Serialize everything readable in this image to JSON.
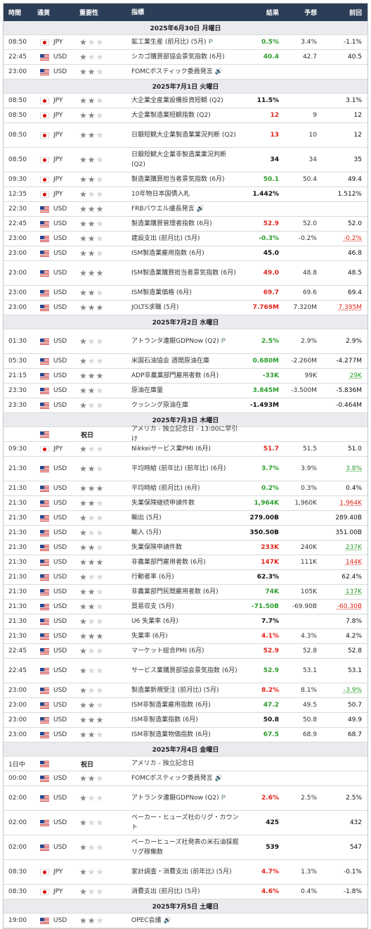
{
  "header": {
    "time": "時間",
    "currency": "通貨",
    "importance": "重要性",
    "indicator": "指標",
    "actual": "結果",
    "forecast": "予想",
    "previous": "前回"
  },
  "colors": {
    "header_bg": "#2c3e57",
    "date_bg": "#e9ebef",
    "positive": "#2a9d2a",
    "negative": "#e0251b"
  },
  "rows": [
    {
      "type": "date",
      "label": "2025年6月30日 月曜日"
    },
    {
      "time": "08:50",
      "flag": "jp",
      "cur": "JPY",
      "stars": 1,
      "name": "鉱工業生産 (前月比) (5月)",
      "pre": true,
      "act": "0.5%",
      "ac": "grn",
      "fc": "3.4%",
      "prev": "-1.1%",
      "pc": "blk"
    },
    {
      "time": "22:45",
      "flag": "us",
      "cur": "USD",
      "stars": 1,
      "name": "シカゴ購買部協会景気指数 (6月)",
      "act": "40.4",
      "ac": "grn",
      "fc": "42.7",
      "prev": "40.5",
      "pc": "blk"
    },
    {
      "time": "23:00",
      "flag": "us",
      "cur": "USD",
      "stars": 2,
      "name": "FOMCボスティック委員発言",
      "spk": true,
      "act": "",
      "fc": "",
      "prev": ""
    },
    {
      "type": "date",
      "label": "2025年7月1日 火曜日"
    },
    {
      "time": "08:50",
      "flag": "jp",
      "cur": "JPY",
      "stars": 2,
      "name": "大企業全産業設備投資短観 (Q2)",
      "act": "11.5%",
      "ac": "blk",
      "fc": "",
      "prev": "3.1%",
      "pc": "blk"
    },
    {
      "time": "08:50",
      "flag": "jp",
      "cur": "JPY",
      "stars": 2,
      "name": "大企業製造業短観指数 (Q2)",
      "act": "12",
      "ac": "red",
      "fc": "9",
      "prev": "12",
      "pc": "blk"
    },
    {
      "time": "08:50",
      "flag": "jp",
      "cur": "JPY",
      "stars": 2,
      "name": "日銀短観大企業製造業業況判断 (Q2)",
      "tall": true,
      "act": "13",
      "ac": "red",
      "fc": "10",
      "prev": "12",
      "pc": "blk"
    },
    {
      "time": "08:50",
      "flag": "jp",
      "cur": "JPY",
      "stars": 2,
      "name": "日銀短観大企業非製造業業況判断 (Q2)",
      "tall": true,
      "act": "34",
      "ac": "blk",
      "fc": "34",
      "prev": "35",
      "pc": "blk"
    },
    {
      "time": "09:30",
      "flag": "jp",
      "cur": "JPY",
      "stars": 2,
      "name": "製造業購買担当者景気指数 (6月)",
      "act": "50.1",
      "ac": "grn",
      "fc": "50.4",
      "prev": "49.4",
      "pc": "blk"
    },
    {
      "time": "12:35",
      "flag": "jp",
      "cur": "JPY",
      "stars": 1,
      "name": "10年物日本国債入札",
      "act": "1.442%",
      "ac": "blk",
      "fc": "",
      "prev": "1.512%",
      "pc": "blk"
    },
    {
      "time": "22:30",
      "flag": "us",
      "cur": "USD",
      "stars": 3,
      "name": "FRBパウエル議長発言",
      "spk": true,
      "act": "",
      "fc": "",
      "prev": ""
    },
    {
      "time": "22:45",
      "flag": "us",
      "cur": "USD",
      "stars": 2,
      "name": "製造業購買管理者指数 (6月)",
      "act": "52.9",
      "ac": "red",
      "fc": "52.0",
      "prev": "52.0",
      "pc": "blk"
    },
    {
      "time": "23:00",
      "flag": "us",
      "cur": "USD",
      "stars": 2,
      "name": "建設支出 (前月比) (5月)",
      "act": "-0.3%",
      "ac": "grn",
      "fc": "-0.2%",
      "prev": "-0.2%",
      "pc": "red ul"
    },
    {
      "time": "23:00",
      "flag": "us",
      "cur": "USD",
      "stars": 2,
      "name": "ISM製造業雇用指数 (6月)",
      "act": "45.0",
      "ac": "blk",
      "fc": "",
      "prev": "46.8",
      "pc": "blk"
    },
    {
      "time": "23:00",
      "flag": "us",
      "cur": "USD",
      "stars": 3,
      "name": "ISM製造業購買担当者景気指数 (6月)",
      "tall": true,
      "act": "49.0",
      "ac": "red",
      "fc": "48.8",
      "prev": "48.5",
      "pc": "blk"
    },
    {
      "time": "23:00",
      "flag": "us",
      "cur": "USD",
      "stars": 2,
      "name": "ISM製造業価格 (6月)",
      "act": "69.7",
      "ac": "red",
      "fc": "69.6",
      "prev": "69.4",
      "pc": "blk"
    },
    {
      "time": "23:00",
      "flag": "us",
      "cur": "USD",
      "stars": 3,
      "name": "JOLTS求職 (5月)",
      "act": "7.769M",
      "ac": "red",
      "fc": "7.320M",
      "prev": "7.395M",
      "pc": "red ul"
    },
    {
      "type": "date",
      "label": "2025年7月2日 水曜日"
    },
    {
      "time": "01:30",
      "flag": "us",
      "cur": "USD",
      "stars": 1,
      "name": "アトランタ連銀GDPNow (Q2)",
      "pre2": true,
      "tall": true,
      "act": "2.5%",
      "ac": "grn",
      "fc": "2.9%",
      "prev": "2.9%",
      "pc": "blk"
    },
    {
      "time": "05:30",
      "flag": "us",
      "cur": "USD",
      "stars": 1,
      "name": "米国石油協会 週間原油在庫",
      "act": "0.680M",
      "ac": "grn",
      "fc": "-2.260M",
      "prev": "-4.277M",
      "pc": "blk"
    },
    {
      "time": "21:15",
      "flag": "us",
      "cur": "USD",
      "stars": 3,
      "name": "ADP非農業部門雇用者数 (6月)",
      "act": "-33K",
      "ac": "grn",
      "fc": "99K",
      "prev": "29K",
      "pc": "grn ul"
    },
    {
      "time": "23:30",
      "flag": "us",
      "cur": "USD",
      "stars": 2,
      "name": "原油在庫量",
      "act": "3.845M",
      "ac": "grn",
      "fc": "-3.500M",
      "prev": "-5.836M",
      "pc": "blk"
    },
    {
      "time": "23:30",
      "flag": "us",
      "cur": "USD",
      "stars": 1,
      "name": "クッシング原油在庫",
      "act": "-1.493M",
      "ac": "blk",
      "fc": "",
      "prev": "-0.464M",
      "pc": "blk"
    },
    {
      "type": "date",
      "label": "2025年7月3日 木曜日"
    },
    {
      "time": "",
      "flag": "us",
      "cur": "",
      "stars": 0,
      "holiday": "祝日",
      "name": "アメリカ - 独立記念日 - 13:00に早引け",
      "act": "",
      "fc": "",
      "prev": ""
    },
    {
      "time": "09:30",
      "flag": "jp",
      "cur": "JPY",
      "stars": 1,
      "name": "Nikkeiサービス業PMI (6月)",
      "act": "51.7",
      "ac": "red",
      "fc": "51.5",
      "prev": "51.0",
      "pc": "blk"
    },
    {
      "time": "21:30",
      "flag": "us",
      "cur": "USD",
      "stars": 2,
      "name": "平均時給 (前年比) (前年比) (6月)",
      "tall": true,
      "act": "3.7%",
      "ac": "grn",
      "fc": "3.9%",
      "prev": "3.8%",
      "pc": "grn ul"
    },
    {
      "time": "21:30",
      "flag": "us",
      "cur": "USD",
      "stars": 3,
      "name": "平均時給 (前月比) (6月)",
      "act": "0.2%",
      "ac": "grn",
      "fc": "0.3%",
      "prev": "0.4%",
      "pc": "blk"
    },
    {
      "time": "21:30",
      "flag": "us",
      "cur": "USD",
      "stars": 2,
      "name": "失業保険継続申請件数",
      "act": "1,964K",
      "ac": "grn",
      "fc": "1,960K",
      "prev": "1,964K",
      "pc": "red ul"
    },
    {
      "time": "21:30",
      "flag": "us",
      "cur": "USD",
      "stars": 1,
      "name": "輸出 (5月)",
      "act": "279.00B",
      "ac": "blk",
      "fc": "",
      "prev": "289.40B",
      "pc": "blk"
    },
    {
      "time": "21:30",
      "flag": "us",
      "cur": "USD",
      "stars": 1,
      "name": "輸入 (5月)",
      "act": "350.50B",
      "ac": "blk",
      "fc": "",
      "prev": "351.00B",
      "pc": "blk"
    },
    {
      "time": "21:30",
      "flag": "us",
      "cur": "USD",
      "stars": 2,
      "name": "失業保険申請件数",
      "act": "233K",
      "ac": "red",
      "fc": "240K",
      "prev": "237K",
      "pc": "grn ul"
    },
    {
      "time": "21:30",
      "flag": "us",
      "cur": "USD",
      "stars": 3,
      "name": "非農業部門雇用者数 (6月)",
      "act": "147K",
      "ac": "red",
      "fc": "111K",
      "prev": "144K",
      "pc": "red ul"
    },
    {
      "time": "21:30",
      "flag": "us",
      "cur": "USD",
      "stars": 1,
      "name": "行動者率 (6月)",
      "act": "62.3%",
      "ac": "blk",
      "fc": "",
      "prev": "62.4%",
      "pc": "blk"
    },
    {
      "time": "21:30",
      "flag": "us",
      "cur": "USD",
      "stars": 2,
      "name": "非農業部門民間雇用者数 (6月)",
      "act": "74K",
      "ac": "grn",
      "fc": "105K",
      "prev": "137K",
      "pc": "grn ul"
    },
    {
      "time": "21:30",
      "flag": "us",
      "cur": "USD",
      "stars": 2,
      "name": "貿易収支 (5月)",
      "act": "-71.50B",
      "ac": "grn",
      "fc": "-69.90B",
      "prev": "-60.30B",
      "pc": "red ul"
    },
    {
      "time": "21:30",
      "flag": "us",
      "cur": "USD",
      "stars": 1,
      "name": "U6 失業率 (6月)",
      "act": "7.7%",
      "ac": "blk",
      "fc": "",
      "prev": "7.8%",
      "pc": "blk"
    },
    {
      "time": "21:30",
      "flag": "us",
      "cur": "USD",
      "stars": 3,
      "name": "失業率 (6月)",
      "act": "4.1%",
      "ac": "red",
      "fc": "4.3%",
      "prev": "4.2%",
      "pc": "blk"
    },
    {
      "time": "22:45",
      "flag": "us",
      "cur": "USD",
      "stars": 1,
      "name": "マーケット総合PMI (6月)",
      "act": "52.9",
      "ac": "red",
      "fc": "52.8",
      "prev": "52.8",
      "pc": "blk"
    },
    {
      "time": "22:45",
      "flag": "us",
      "cur": "USD",
      "stars": 1,
      "name": "サービス業購買部協会景気指数 (6月)",
      "tall": true,
      "act": "52.9",
      "ac": "grn",
      "fc": "53.1",
      "prev": "53.1",
      "pc": "blk"
    },
    {
      "time": "23:00",
      "flag": "us",
      "cur": "USD",
      "stars": 1,
      "name": "製造業新規受注 (前月比) (5月)",
      "act": "8.2%",
      "ac": "red",
      "fc": "8.1%",
      "prev": "-3.9%",
      "pc": "grn ul"
    },
    {
      "time": "23:00",
      "flag": "us",
      "cur": "USD",
      "stars": 2,
      "name": "ISM非製造業雇用指数 (6月)",
      "act": "47.2",
      "ac": "grn",
      "fc": "49.5",
      "prev": "50.7",
      "pc": "blk"
    },
    {
      "time": "23:00",
      "flag": "us",
      "cur": "USD",
      "stars": 3,
      "name": "ISM非製造業指数 (6月)",
      "act": "50.8",
      "ac": "blk",
      "fc": "50.8",
      "prev": "49.9",
      "pc": "blk"
    },
    {
      "time": "23:00",
      "flag": "us",
      "cur": "USD",
      "stars": 2,
      "name": "ISM非製造業物価指数 (6月)",
      "act": "67.5",
      "ac": "grn",
      "fc": "68.9",
      "prev": "68.7",
      "pc": "blk"
    },
    {
      "type": "date",
      "label": "2025年7月4日 金曜日"
    },
    {
      "time": "1日中",
      "flag": "us",
      "cur": "",
      "stars": 0,
      "holiday": "祝日",
      "name": "アメリカ - 独立記念日",
      "act": "",
      "fc": "",
      "prev": ""
    },
    {
      "time": "00:00",
      "flag": "us",
      "cur": "USD",
      "stars": 2,
      "name": "FOMCボスティック委員発言",
      "spk": true,
      "act": "",
      "fc": "",
      "prev": ""
    },
    {
      "time": "02:00",
      "flag": "us",
      "cur": "USD",
      "stars": 1,
      "name": "アトランタ連銀GDPNow (Q2)",
      "pre2": true,
      "tall": true,
      "act": "2.6%",
      "ac": "red",
      "fc": "2.5%",
      "prev": "2.5%",
      "pc": "blk"
    },
    {
      "time": "02:00",
      "flag": "us",
      "cur": "USD",
      "stars": 1,
      "name": "ベーカー・ヒューズ社のリグ・カウント",
      "tall": true,
      "act": "425",
      "ac": "blk",
      "fc": "",
      "prev": "432",
      "pc": "blk"
    },
    {
      "time": "02:00",
      "flag": "us",
      "cur": "USD",
      "stars": 1,
      "name": "ベーカーヒューズ社発表の米石油採掘リグ稼働数",
      "tall": true,
      "act": "539",
      "ac": "blk",
      "fc": "",
      "prev": "547",
      "pc": "blk"
    },
    {
      "time": "08:30",
      "flag": "jp",
      "cur": "JPY",
      "stars": 1,
      "name": "家計調査・消費支出 (前年比) (5月)",
      "tall": true,
      "act": "4.7%",
      "ac": "red",
      "fc": "1.3%",
      "prev": "-0.1%",
      "pc": "blk"
    },
    {
      "time": "08:30",
      "flag": "jp",
      "cur": "JPY",
      "stars": 1,
      "name": "消費支出 (前月比) (5月)",
      "act": "4.6%",
      "ac": "red",
      "fc": "0.4%",
      "prev": "-1.8%",
      "pc": "blk"
    },
    {
      "type": "date",
      "label": "2025年7月5日 土曜日"
    },
    {
      "time": "19:00",
      "flag": "us",
      "cur": "USD",
      "stars": 2,
      "name": "OPEC会議",
      "spk": true,
      "act": "",
      "fc": "",
      "prev": ""
    }
  ],
  "icons": {
    "star": "star-icon",
    "flag_jp": "japan-flag-icon",
    "flag_us": "usa-flag-icon",
    "speaker": "speaker-icon",
    "preliminary": "preliminary-icon"
  },
  "preliminary_glyph": "P",
  "speaker_glyph": "🔊"
}
